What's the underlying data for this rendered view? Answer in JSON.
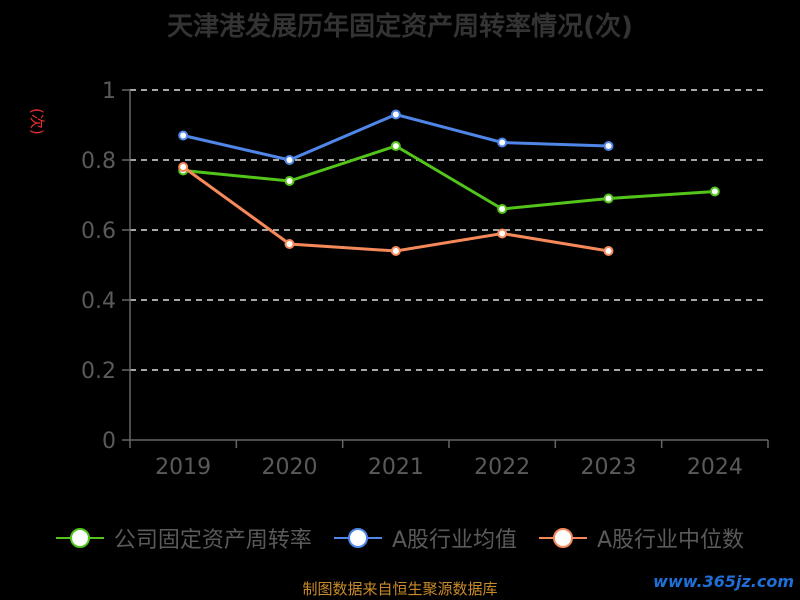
{
  "chart_data": {
    "type": "line",
    "title": "天津港发展历年固定资产周转率情况(次)",
    "unit_label": "(次)",
    "categories": [
      "2019",
      "2020",
      "2021",
      "2022",
      "2023",
      "2024"
    ],
    "ylim": [
      0,
      1
    ],
    "yticks": [
      "0",
      "0.2",
      "0.4",
      "0.6",
      "0.8",
      "1"
    ],
    "grid": true,
    "legend_position": "bottom",
    "series": [
      {
        "name": "公司固定资产周转率",
        "color": "#52c41a",
        "values": [
          0.77,
          0.74,
          0.84,
          0.66,
          0.69,
          0.71
        ]
      },
      {
        "name": "A股行业均值",
        "color": "#4f86e8",
        "values": [
          0.87,
          0.8,
          0.93,
          0.85,
          0.84,
          null
        ]
      },
      {
        "name": "A股行业中位数",
        "color": "#f5895a",
        "values": [
          0.78,
          0.56,
          0.54,
          0.59,
          0.54,
          null
        ]
      }
    ]
  },
  "footer": {
    "source": "制图数据来自恒生聚源数据库",
    "watermark": "www.365jz.com"
  }
}
